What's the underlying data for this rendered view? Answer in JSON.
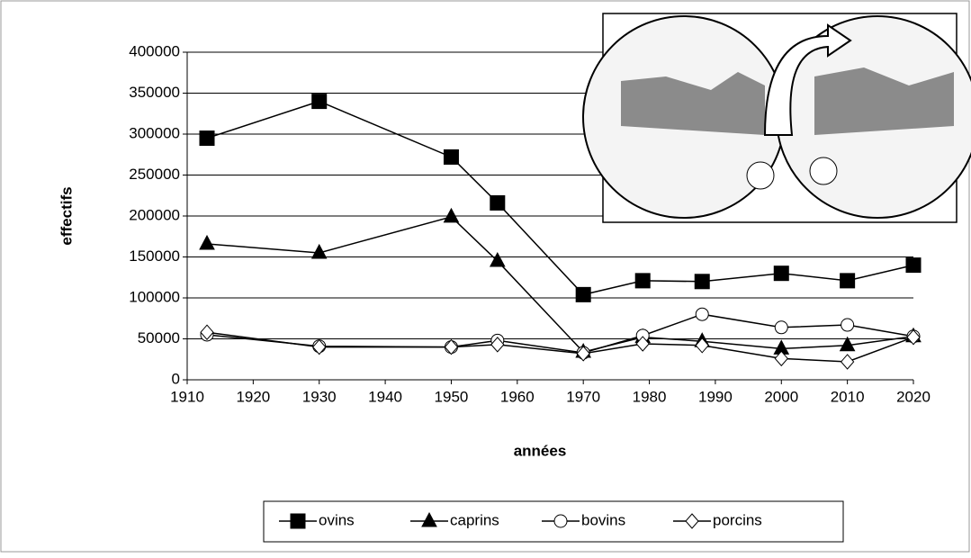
{
  "chart_data": {
    "type": "line",
    "x_label": "années",
    "y_label": "effectifs",
    "x": [
      1913,
      1930,
      1950,
      1957,
      1970,
      1979,
      1988,
      2000,
      2010,
      2020
    ],
    "series": [
      {
        "name": "ovins",
        "color": "#000000",
        "marker": "square",
        "marker_fill": "#000000",
        "values": [
          295000,
          340000,
          272000,
          216000,
          104000,
          121000,
          120000,
          130000,
          121000,
          140000
        ]
      },
      {
        "name": "caprins",
        "color": "#000000",
        "marker": "triangle",
        "marker_fill": "#000000",
        "values": [
          166000,
          155000,
          199000,
          145000,
          34000,
          52000,
          47000,
          38000,
          42000,
          53000
        ]
      },
      {
        "name": "bovins",
        "color": "#000000",
        "marker": "circle",
        "marker_fill": "#ffffff",
        "values": [
          55000,
          41000,
          40000,
          48000,
          33000,
          54000,
          80000,
          64000,
          67000,
          53000
        ]
      },
      {
        "name": "porcins",
        "color": "#000000",
        "marker": "diamond",
        "marker_fill": "#ffffff",
        "values": [
          58000,
          40000,
          40000,
          43000,
          32000,
          44000,
          42000,
          26000,
          22000,
          52000
        ]
      }
    ],
    "xlim": [
      1910,
      2020
    ],
    "xticks": [
      1910,
      1920,
      1930,
      1940,
      1950,
      1960,
      1970,
      1980,
      1990,
      2000,
      2010,
      2020
    ],
    "ylim": [
      0,
      400000
    ],
    "yticks": [
      0,
      50000,
      100000,
      150000,
      200000,
      250000,
      300000,
      350000,
      400000
    ],
    "grid": true,
    "legend": "bottom"
  }
}
